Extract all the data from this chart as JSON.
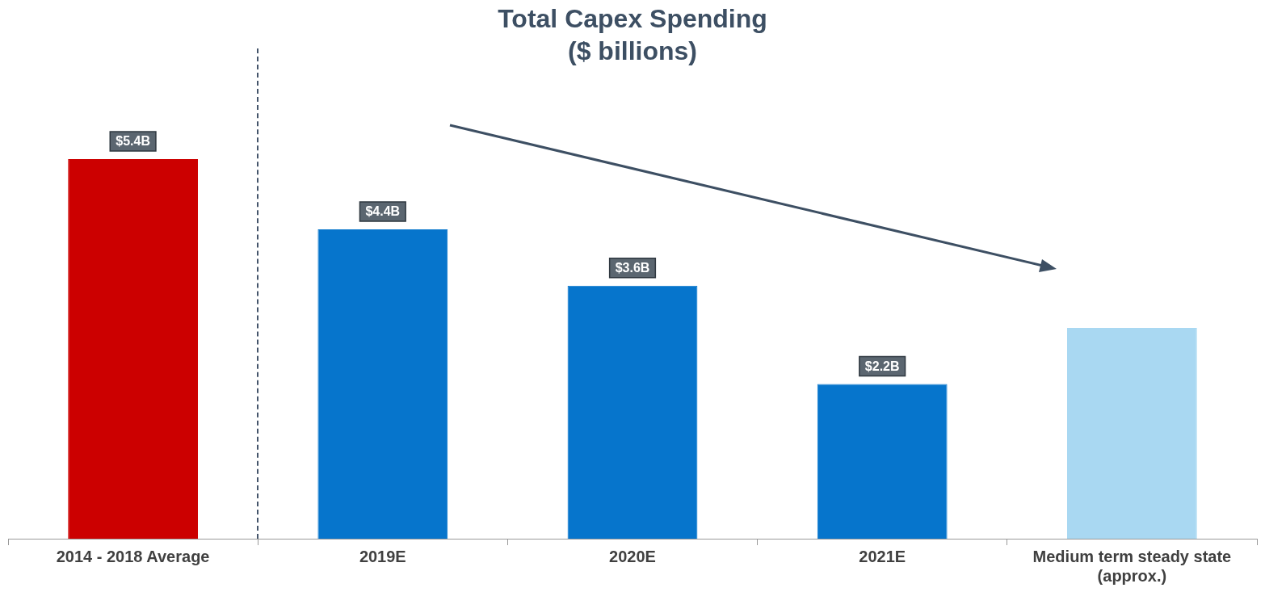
{
  "chart_data": {
    "type": "bar",
    "title": "Total Capex Spending",
    "subtitle": "($ billions)",
    "categories": [
      "2014 - 2018 Average",
      "2019E",
      "2020E",
      "2021E",
      "Medium term steady state (approx.)"
    ],
    "values": [
      5.4,
      4.4,
      3.6,
      2.2,
      3.0
    ],
    "value_labels": [
      "$5.4B",
      "$4.4B",
      "$3.6B",
      "$2.2B",
      null
    ],
    "colors": [
      "#cc0000",
      "#0675cc",
      "#0675cc",
      "#0675cc",
      "#a9d8f2"
    ],
    "grid": false,
    "legend": false
  }
}
